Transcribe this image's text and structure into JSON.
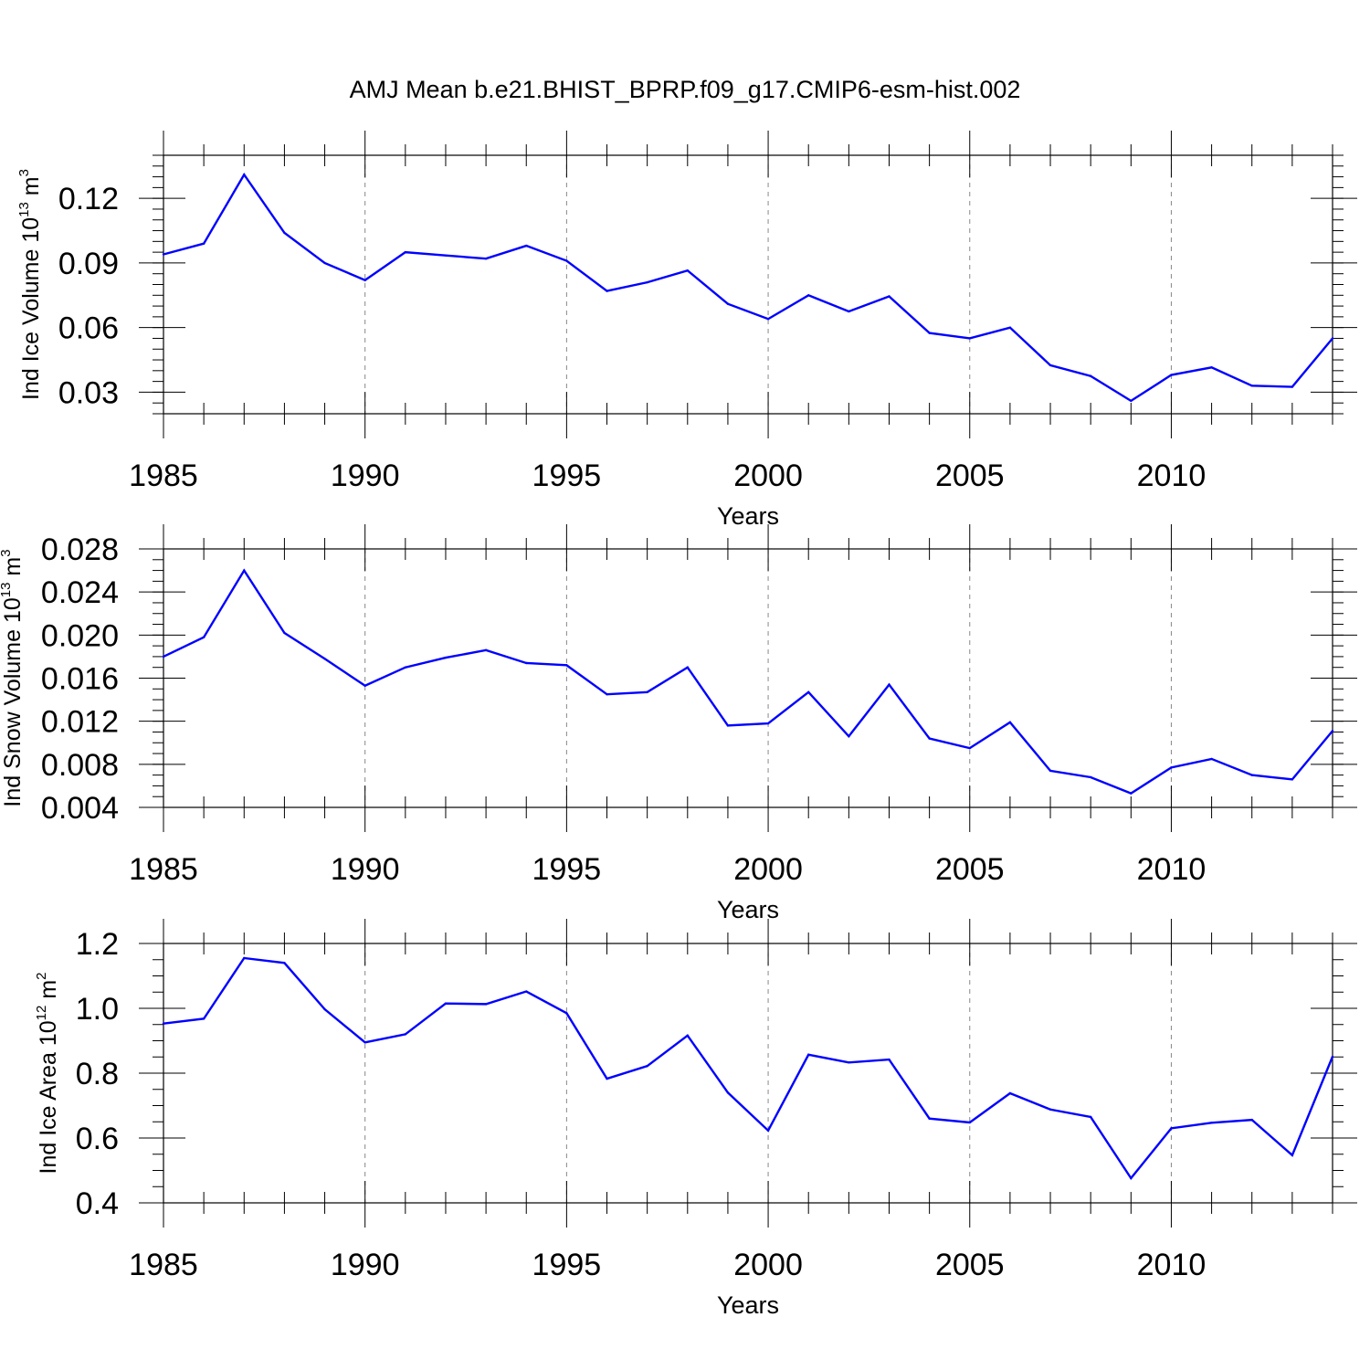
{
  "title": "AMJ Mean b.e21.BHIST_BPRP.f09_g17.CMIP6-esm-hist.002",
  "chart_data": [
    {
      "type": "line",
      "title": "AMJ Mean b.e21.BHIST_BPRP.f09_g17.CMIP6-esm-hist.002",
      "ylabel": {
        "text": "Ind Ice Volume 10",
        "exp": "13",
        "unit": " m",
        "unit_exp": "3"
      },
      "xlabel": "Years",
      "xlim": [
        1985,
        2014
      ],
      "ylim": [
        0.02,
        0.14
      ],
      "xticks": [
        "1985",
        "1990",
        "1995",
        "2000",
        "2005",
        "2010"
      ],
      "yticks": [
        "0.03",
        "0.06",
        "0.09",
        "0.12"
      ],
      "ytick_values": [
        0.03,
        0.06,
        0.09,
        0.12
      ],
      "yminor_step": 0.005,
      "grid": "dashed vertical at labeled years",
      "series": [
        {
          "name": "Ind Ice Volume",
          "color": "#0000ff",
          "x": [
            1985,
            1986,
            1987,
            1988,
            1989,
            1990,
            1991,
            1992,
            1993,
            1994,
            1995,
            1996,
            1997,
            1998,
            1999,
            2000,
            2001,
            2002,
            2003,
            2004,
            2005,
            2006,
            2007,
            2008,
            2009,
            2010,
            2011,
            2012,
            2013,
            2014
          ],
          "values": [
            0.094,
            0.099,
            0.131,
            0.104,
            0.09,
            0.082,
            0.095,
            0.0935,
            0.092,
            0.098,
            0.091,
            0.077,
            0.081,
            0.0865,
            0.071,
            0.064,
            0.075,
            0.0675,
            0.0745,
            0.0575,
            0.055,
            0.06,
            0.0425,
            0.0375,
            0.026,
            0.038,
            0.0415,
            0.033,
            0.0325,
            0.055
          ]
        }
      ]
    },
    {
      "type": "line",
      "ylabel": {
        "text": "Ind Snow Volume 10",
        "exp": "13",
        "unit": " m",
        "unit_exp": "3"
      },
      "xlabel": "Years",
      "xlim": [
        1985,
        2014
      ],
      "ylim": [
        0.004,
        0.028
      ],
      "xticks": [
        "1985",
        "1990",
        "1995",
        "2000",
        "2005",
        "2010"
      ],
      "yticks": [
        "0.004",
        "0.008",
        "0.012",
        "0.016",
        "0.020",
        "0.024",
        "0.028"
      ],
      "ytick_values": [
        0.004,
        0.008,
        0.012,
        0.016,
        0.02,
        0.024,
        0.028
      ],
      "yminor_step": 0.001,
      "grid": "dashed vertical at labeled years",
      "series": [
        {
          "name": "Ind Snow Volume",
          "color": "#0000ff",
          "x": [
            1985,
            1986,
            1987,
            1988,
            1989,
            1990,
            1991,
            1992,
            1993,
            1994,
            1995,
            1996,
            1997,
            1998,
            1999,
            2000,
            2001,
            2002,
            2003,
            2004,
            2005,
            2006,
            2007,
            2008,
            2009,
            2010,
            2011,
            2012,
            2013,
            2014
          ],
          "values": [
            0.018,
            0.0198,
            0.026,
            0.0202,
            0.0178,
            0.0153,
            0.017,
            0.0179,
            0.0186,
            0.0174,
            0.0172,
            0.0145,
            0.0147,
            0.017,
            0.0116,
            0.0118,
            0.0147,
            0.0106,
            0.0154,
            0.0104,
            0.0095,
            0.0119,
            0.0074,
            0.0068,
            0.0053,
            0.0077,
            0.0085,
            0.007,
            0.0066,
            0.0111
          ]
        }
      ]
    },
    {
      "type": "line",
      "ylabel": {
        "text": "Ind Ice Area 10",
        "exp": "12",
        "unit": " m",
        "unit_exp": "2"
      },
      "xlabel": "Years",
      "xlim": [
        1985,
        2014
      ],
      "ylim": [
        0.4,
        1.2
      ],
      "xticks": [
        "1985",
        "1990",
        "1995",
        "2000",
        "2005",
        "2010"
      ],
      "yticks": [
        "0.4",
        "0.6",
        "0.8",
        "1.0",
        "1.2"
      ],
      "ytick_values": [
        0.4,
        0.6,
        0.8,
        1.0,
        1.2
      ],
      "yminor_step": 0.05,
      "grid": "dashed vertical at labeled years",
      "series": [
        {
          "name": "Ind Ice Area",
          "color": "#0000ff",
          "x": [
            1985,
            1986,
            1987,
            1988,
            1989,
            1990,
            1991,
            1992,
            1993,
            1994,
            1995,
            1996,
            1997,
            1998,
            1999,
            2000,
            2001,
            2002,
            2003,
            2004,
            2005,
            2006,
            2007,
            2008,
            2009,
            2010,
            2011,
            2012,
            2013,
            2014
          ],
          "values": [
            0.953,
            0.968,
            1.155,
            1.14,
            0.997,
            0.895,
            0.92,
            1.015,
            1.013,
            1.052,
            0.985,
            0.783,
            0.822,
            0.916,
            0.74,
            0.623,
            0.857,
            0.833,
            0.842,
            0.66,
            0.648,
            0.738,
            0.688,
            0.665,
            0.476,
            0.63,
            0.647,
            0.656,
            0.547,
            0.851
          ]
        }
      ]
    }
  ]
}
